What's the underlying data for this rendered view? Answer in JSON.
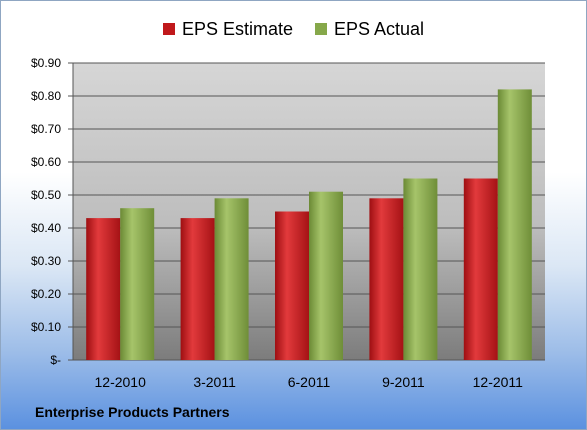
{
  "chart_data": {
    "type": "bar",
    "title": "",
    "xlabel": "",
    "ylabel": "",
    "categories": [
      "12-2010",
      "3-2011",
      "6-2011",
      "9-2011",
      "12-2011"
    ],
    "series": [
      {
        "name": "EPS Estimate",
        "values": [
          0.43,
          0.43,
          0.45,
          0.49,
          0.55
        ],
        "color": "#c0181b"
      },
      {
        "name": "EPS Actual",
        "values": [
          0.46,
          0.49,
          0.51,
          0.55,
          0.82
        ],
        "color": "#86a84a"
      }
    ],
    "ylim": [
      0,
      0.9
    ],
    "yticks": [
      0,
      0.1,
      0.2,
      0.3,
      0.4,
      0.5,
      0.6,
      0.7,
      0.8,
      0.9
    ],
    "ytick_labels": [
      "$-",
      "$0.10",
      "$0.20",
      "$0.30",
      "$0.40",
      "$0.50",
      "$0.60",
      "$0.70",
      "$0.80",
      "$0.90"
    ],
    "grid": true,
    "legend_position": "top-center"
  },
  "footer": {
    "company": "Enterprise Products Partners"
  }
}
